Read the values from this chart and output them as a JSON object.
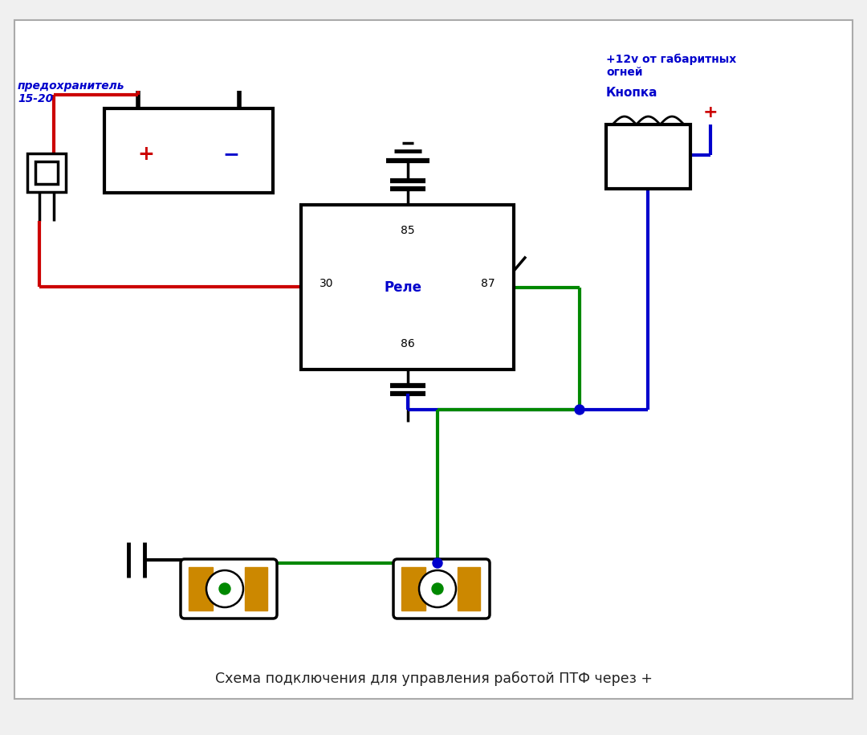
{
  "bg_color": "#f0f0f0",
  "title_bottom": "Схема подключения для управления работой ПТФ через +",
  "label_fuse": "предохранитель\n15-20",
  "label_plus12v": "+12v от габаритных\nогней",
  "label_knopka": "Кнопка",
  "label_rele": "Реле",
  "label_85": "85",
  "label_86": "86",
  "label_30": "30",
  "label_87": "87",
  "red": "#cc0000",
  "blue": "#0000cc",
  "green": "#008800",
  "black": "#000000",
  "orange": "#cc8800",
  "wire_lw": 3.0,
  "comp_lw": 2.5
}
